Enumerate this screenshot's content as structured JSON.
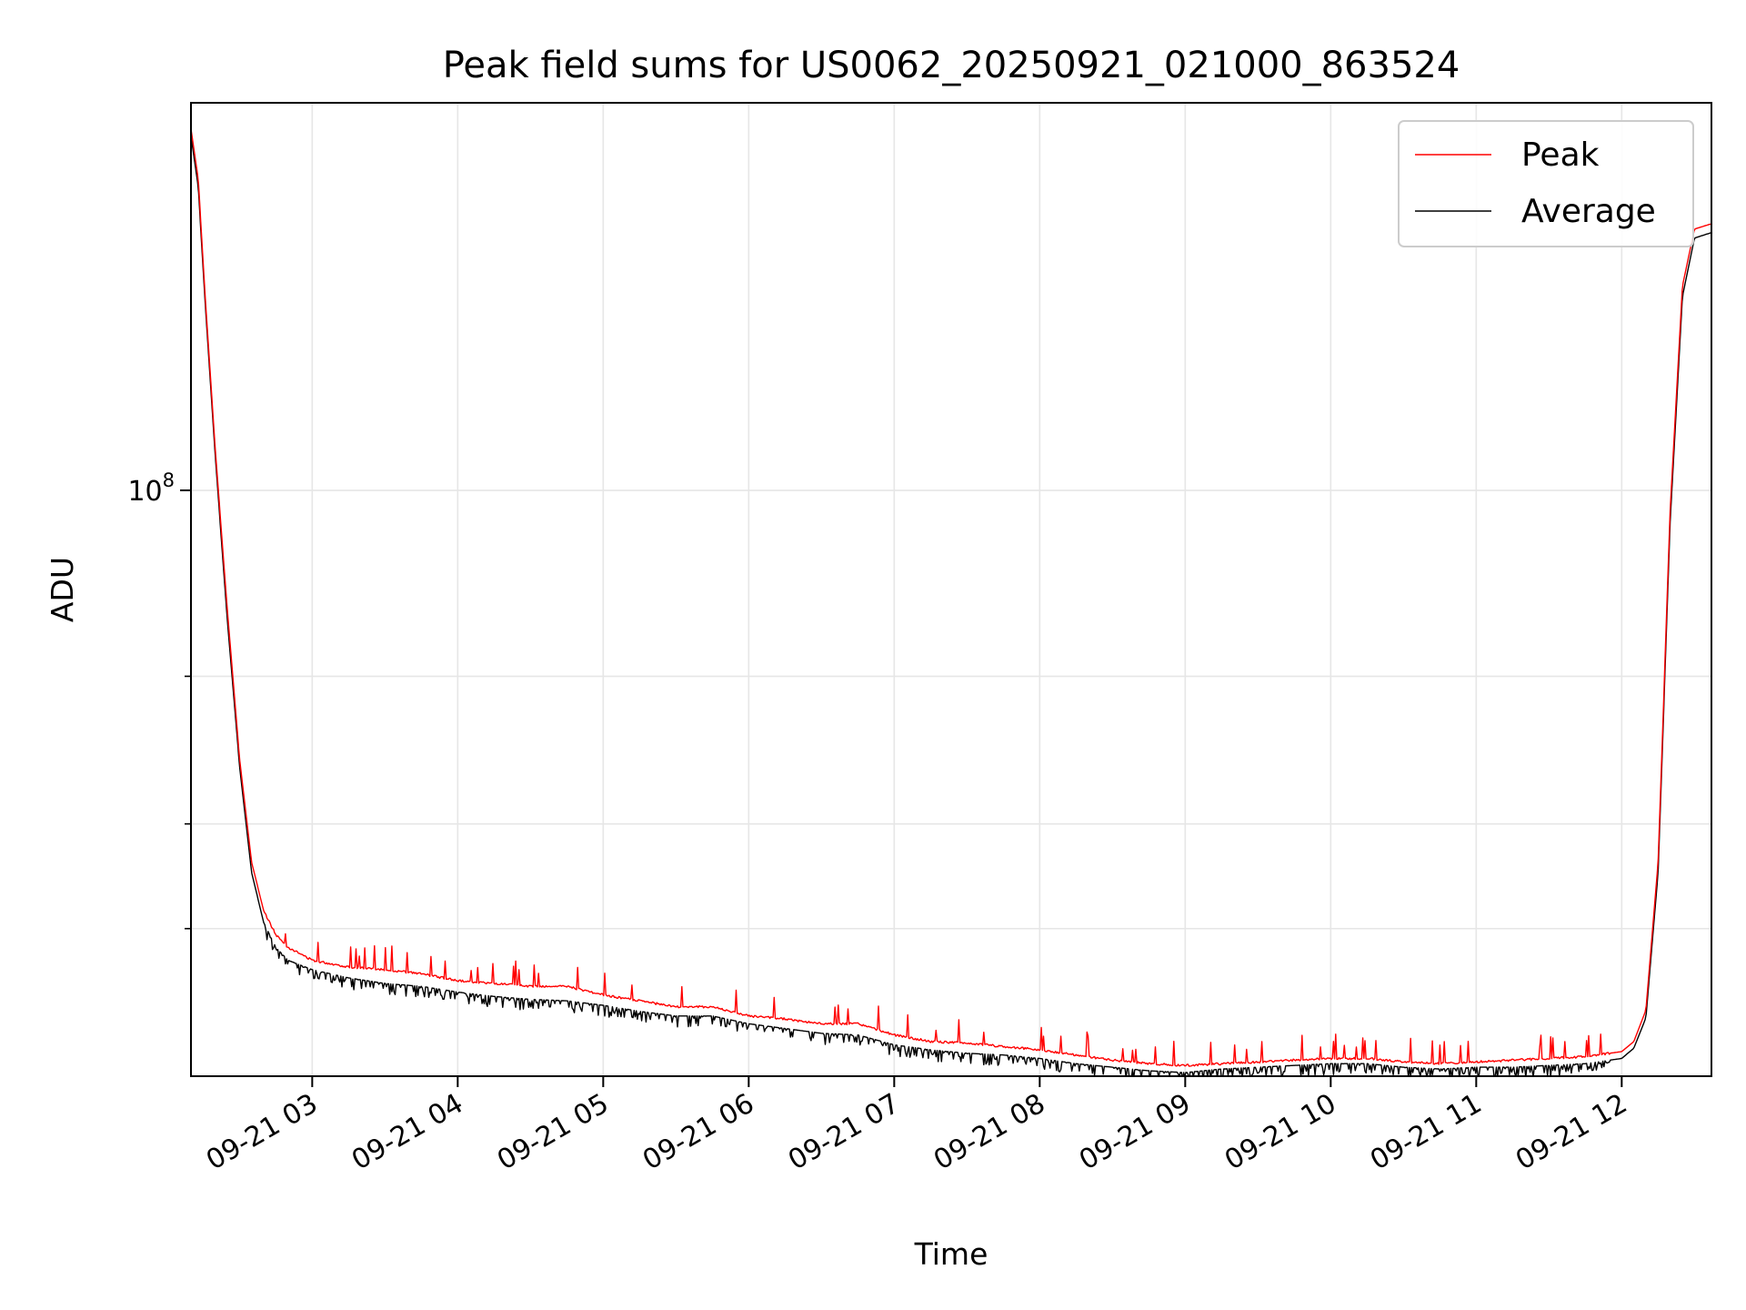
{
  "chart_data": {
    "type": "line",
    "title": "Peak field sums for US0062_20250921_021000_863524",
    "xlabel": "Time",
    "ylabel": "ADU",
    "yscale": "log",
    "grid": true,
    "legend_placement": "top-right",
    "xlim": [
      "09-21 02:10",
      "09-21 12:37"
    ],
    "ylim": [
      20000000,
      290000000
    ],
    "x_ticks": [
      "09-21 03",
      "09-21 04",
      "09-21 05",
      "09-21 06",
      "09-21 07",
      "09-21 08",
      "09-21 09",
      "09-21 10",
      "09-21 11",
      "09-21 12"
    ],
    "y_major_ticks": [
      {
        "value": 100000000,
        "base": "10",
        "exponent": "8"
      }
    ],
    "y_minor_ticks": [
      30000000,
      40000000,
      60000000
    ],
    "colors": {
      "Peak": "#ff0000",
      "Average": "#000000"
    },
    "series": [
      {
        "name": "Peak",
        "color": "#ff0000",
        "x": [
          "09-21 02:10",
          "09-21 02:13",
          "09-21 02:16",
          "09-21 02:20",
          "09-21 02:25",
          "09-21 02:30",
          "09-21 02:35",
          "09-21 02:40",
          "09-21 02:45",
          "09-21 02:50",
          "09-21 03:00",
          "09-21 03:15",
          "09-21 03:30",
          "09-21 03:45",
          "09-21 04:00",
          "09-21 04:15",
          "09-21 04:30",
          "09-21 04:45",
          "09-21 05:00",
          "09-21 05:15",
          "09-21 05:30",
          "09-21 05:45",
          "09-21 06:00",
          "09-21 06:15",
          "09-21 06:30",
          "09-21 06:45",
          "09-21 07:00",
          "09-21 07:15",
          "09-21 07:30",
          "09-21 07:45",
          "09-21 08:00",
          "09-21 08:15",
          "09-21 08:30",
          "09-21 08:45",
          "09-21 09:00",
          "09-21 09:15",
          "09-21 09:30",
          "09-21 09:45",
          "09-21 10:00",
          "09-21 10:15",
          "09-21 10:30",
          "09-21 10:45",
          "09-21 11:00",
          "09-21 11:15",
          "09-21 11:30",
          "09-21 11:45",
          "09-21 12:00",
          "09-21 12:05",
          "09-21 12:10",
          "09-21 12:15",
          "09-21 12:20",
          "09-21 12:25",
          "09-21 12:30",
          "09-21 12:37"
        ],
        "values": [
          270000000,
          235000000,
          168000000,
          112000000,
          72000000,
          48000000,
          36000000,
          31500000,
          29500000,
          28500000,
          27500000,
          27000000,
          26800000,
          26500000,
          26000000,
          25800000,
          25600000,
          25600000,
          25000000,
          24600000,
          24200000,
          24200000,
          23600000,
          23400000,
          23100000,
          23100000,
          22400000,
          22000000,
          21900000,
          21700000,
          21500000,
          21200000,
          20900000,
          20700000,
          20600000,
          20700000,
          20800000,
          20900000,
          21000000,
          21000000,
          20800000,
          20700000,
          20800000,
          20900000,
          21000000,
          21100000,
          21400000,
          22000000,
          24000000,
          36000000,
          95000000,
          175000000,
          205000000,
          208000000
        ]
      },
      {
        "name": "Average",
        "color": "#000000",
        "x": [
          "09-21 02:10",
          "09-21 02:13",
          "09-21 02:16",
          "09-21 02:20",
          "09-21 02:25",
          "09-21 02:30",
          "09-21 02:35",
          "09-21 02:40",
          "09-21 02:45",
          "09-21 02:50",
          "09-21 03:00",
          "09-21 03:15",
          "09-21 03:30",
          "09-21 03:45",
          "09-21 04:00",
          "09-21 04:15",
          "09-21 04:30",
          "09-21 04:45",
          "09-21 05:00",
          "09-21 05:15",
          "09-21 05:30",
          "09-21 05:45",
          "09-21 06:00",
          "09-21 06:15",
          "09-21 06:30",
          "09-21 06:45",
          "09-21 07:00",
          "09-21 07:15",
          "09-21 07:30",
          "09-21 07:45",
          "09-21 08:00",
          "09-21 08:15",
          "09-21 08:30",
          "09-21 08:45",
          "09-21 09:00",
          "09-21 09:15",
          "09-21 09:30",
          "09-21 09:45",
          "09-21 10:00",
          "09-21 10:15",
          "09-21 10:30",
          "09-21 10:45",
          "09-21 11:00",
          "09-21 11:15",
          "09-21 11:30",
          "09-21 11:45",
          "09-21 12:00",
          "09-21 12:05",
          "09-21 12:10",
          "09-21 12:15",
          "09-21 12:20",
          "09-21 12:25",
          "09-21 12:30",
          "09-21 12:37"
        ],
        "values": [
          265000000,
          230000000,
          165000000,
          110000000,
          70000000,
          47000000,
          35000000,
          30500000,
          28500000,
          27500000,
          26800000,
          26200000,
          25800000,
          25600000,
          25200000,
          24900000,
          24700000,
          24600000,
          24300000,
          23900000,
          23600000,
          23600000,
          23100000,
          22800000,
          22500000,
          22400000,
          21800000,
          21500000,
          21300000,
          21200000,
          21000000,
          20700000,
          20500000,
          20300000,
          20200000,
          20400000,
          20500000,
          20600000,
          20700000,
          20700000,
          20500000,
          20400000,
          20500000,
          20500000,
          20600000,
          20700000,
          21000000,
          21600000,
          23500000,
          35000000,
          92000000,
          170000000,
          200000000,
          203000000
        ]
      }
    ]
  }
}
